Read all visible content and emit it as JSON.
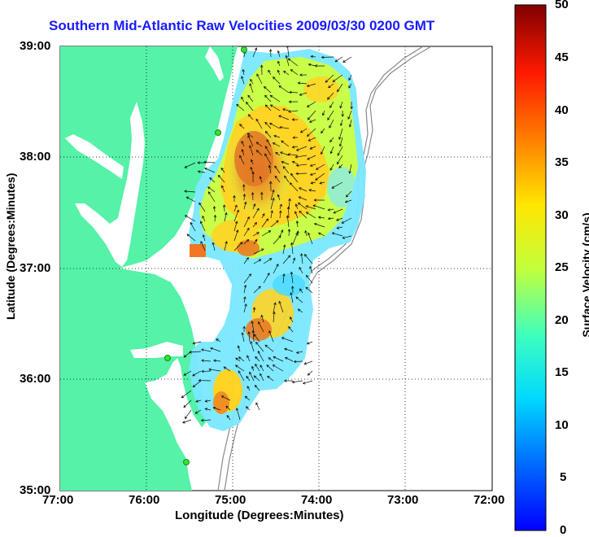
{
  "title": "Southern Mid-Atlantic Raw Velocities 2009/03/30 0200 GMT",
  "x_axis": {
    "label": "Longitude (Degrees:Minutes)",
    "ticks": [
      "77:00",
      "76:00",
      "75:00",
      "74:00",
      "73:00",
      "72:00"
    ]
  },
  "y_axis": {
    "label": "Latitude (Degrees:Minutes)",
    "ticks": [
      "39:00",
      "38:00",
      "37:00",
      "36:00",
      "35:00"
    ]
  },
  "colorbar": {
    "label": "Surface Velocity (cm/s)",
    "ticks": [
      "50",
      "45",
      "40",
      "35",
      "30",
      "25",
      "20",
      "15",
      "10",
      "5",
      "0"
    ],
    "min": 0,
    "max": 50
  },
  "colors": {
    "land": "#55f2a8",
    "title": "#1a1aff",
    "station": "#2ee62e",
    "bathymetry": "#8a8a8a"
  },
  "chart_data": {
    "type": "heatmap",
    "title": "Southern Mid-Atlantic Raw Velocities 2009/03/30 0200 GMT",
    "xlabel": "Longitude (Degrees:Minutes)",
    "ylabel": "Latitude (Degrees:Minutes)",
    "xlim": [
      -77,
      -72
    ],
    "ylim": [
      35,
      39
    ],
    "grid": true,
    "colorbar_range": [
      0,
      50
    ],
    "stations": [
      {
        "lon": -74.87,
        "lat": 39.0
      },
      {
        "lon": -75.09,
        "lat": 38.2
      },
      {
        "lon": -75.69,
        "lat": 36.17
      },
      {
        "lon": -75.48,
        "lat": 35.27
      }
    ]
  }
}
